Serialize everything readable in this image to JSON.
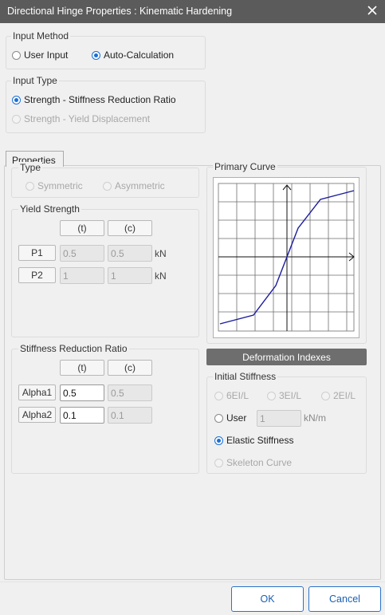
{
  "window": {
    "title": "Directional Hinge Properties : Kinematic Hardening"
  },
  "input_method": {
    "legend": "Input Method",
    "options": [
      {
        "label": "User Input",
        "checked": false
      },
      {
        "label": "Auto-Calculation",
        "checked": true
      }
    ]
  },
  "input_type": {
    "legend": "Input Type",
    "options": [
      {
        "label": "Strength - Stiffness Reduction Ratio",
        "checked": true,
        "enabled": true
      },
      {
        "label": "Strength - Yield Displacement",
        "checked": false,
        "enabled": false
      }
    ]
  },
  "tab": {
    "label": "Properties"
  },
  "type_group": {
    "legend": "Type",
    "options": [
      {
        "label": "Symmetric",
        "enabled": false
      },
      {
        "label": "Asymmetric",
        "enabled": false
      }
    ]
  },
  "yield_strength": {
    "legend": "Yield Strength",
    "col_t": "(t)",
    "col_c": "(c)",
    "rows": [
      {
        "label": "P1",
        "t": "0.5",
        "c": "0.5",
        "unit": "kN"
      },
      {
        "label": "P2",
        "t": "1",
        "c": "1",
        "unit": "kN"
      }
    ]
  },
  "stiffness_reduction": {
    "legend": "Stiffness Reduction Ratio",
    "col_t": "(t)",
    "col_c": "(c)",
    "rows": [
      {
        "label": "Alpha1",
        "t": "0.5",
        "c": "0.5"
      },
      {
        "label": "Alpha2",
        "t": "0.1",
        "c": "0.1"
      }
    ]
  },
  "primary_curve": {
    "legend": "Primary Curve"
  },
  "deformation_indexes": {
    "label": "Deformation Indexes"
  },
  "initial_stiffness": {
    "legend": "Initial Stiffness",
    "options_row": [
      {
        "label": "6EI/L",
        "enabled": false
      },
      {
        "label": "3EI/L",
        "enabled": false
      },
      {
        "label": "2EI/L",
        "enabled": false
      }
    ],
    "user": {
      "label": "User",
      "value": "1",
      "unit": "kN/m"
    },
    "elastic": {
      "label": "Elastic Stiffness",
      "checked": true
    },
    "skeleton": {
      "label": "Skeleton Curve",
      "enabled": false
    }
  },
  "footer": {
    "ok_label": "OK",
    "cancel_label": "Cancel"
  },
  "colors": {
    "accent": "#1a6fd6",
    "titlebar": "#5b5b5b",
    "curve": "#1c1c9c"
  },
  "icons": {
    "close": "close-icon"
  }
}
